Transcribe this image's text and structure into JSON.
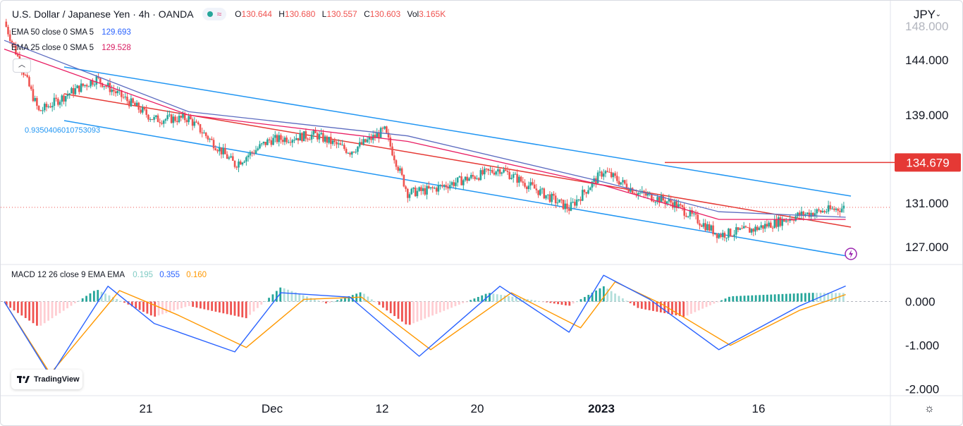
{
  "header": {
    "symbol": "U.S. Dollar / Japanese Yen · 4h · OANDA",
    "ohlc": [
      {
        "key": "O",
        "value": "130.644"
      },
      {
        "key": "H",
        "value": "130.680"
      },
      {
        "key": "L",
        "value": "130.557"
      },
      {
        "key": "C",
        "value": "130.603"
      },
      {
        "key": "Vol",
        "value": "3.165K"
      }
    ],
    "currency": "JPY"
  },
  "indicators": {
    "ema50": {
      "name": "EMA 50 close 0 SMA 5",
      "value": "129.693",
      "color": "#2962ff"
    },
    "ema25": {
      "name": "EMA 25 close 0 SMA 5",
      "value": "129.528",
      "color": "#d81b60"
    },
    "macd": {
      "name": "MACD 12 26 close 9 EMA EMA",
      "hist": "0.195",
      "macd": "0.355",
      "signal": "0.160",
      "colors": {
        "hist": "#26a69a",
        "macd": "#2962ff",
        "signal": "#ff9800"
      }
    }
  },
  "fib_label": "0.9350406010753093",
  "price_label": "134.679",
  "branding": "TradingView",
  "icons": [
    "collapse-chevron-up-icon",
    "lightning-icon",
    "settings-gear-icon",
    "tradingview-logo-icon"
  ],
  "chart_data": [
    {
      "type": "candlestick",
      "title": "U.S. Dollar / Japanese Yen · 4h · OANDA",
      "x_ticks": [
        "21",
        "Dec",
        "12",
        "20",
        "2023",
        "16"
      ],
      "y_ticks": [
        "144.000",
        "139.000",
        "131.000",
        "127.000"
      ],
      "ylim": [
        125.4,
        147.8
      ],
      "channel_lines": [
        "upper",
        "mid",
        "lower"
      ],
      "horizontal_level": 134.679,
      "series": [
        {
          "name": "Close",
          "x": [
            "Nov 15",
            "Nov 18",
            "Nov 21",
            "Nov 23",
            "Nov 28",
            "Dec 1",
            "Dec 5",
            "Dec 8",
            "Dec 12",
            "Dec 15",
            "Dec 18",
            "Dec 20",
            "Dec 22",
            "Dec 28",
            "Jan 3",
            "Jan 6",
            "Jan 9",
            "Jan 12",
            "Jan 16",
            "Jan 19",
            "Jan 23",
            "Jan 27"
          ],
          "values": [
            147.5,
            139.3,
            141.2,
            142.3,
            138.6,
            138.7,
            134.5,
            136.7,
            137.2,
            135.7,
            137.6,
            131.9,
            132.2,
            134.1,
            130.5,
            133.9,
            131.9,
            131.0,
            128.1,
            128.6,
            129.9,
            130.6
          ]
        },
        {
          "name": "EMA 50 close 0 SMA 5",
          "x": [
            "Nov 15",
            "Dec 1",
            "Dec 20",
            "Jan 6",
            "Jan 16",
            "Jan 27"
          ],
          "values": [
            145.8,
            139.3,
            137.1,
            132.9,
            130.2,
            129.7
          ]
        },
        {
          "name": "EMA 25 close 0 SMA 5",
          "x": [
            "Nov 15",
            "Dec 1",
            "Dec 20",
            "Jan 6",
            "Jan 16",
            "Jan 27"
          ],
          "values": [
            145.0,
            139.0,
            136.6,
            132.6,
            129.5,
            129.5
          ]
        }
      ]
    },
    {
      "type": "bar",
      "title": "MACD 12 26 close 9 EMA EMA",
      "y_ticks": [
        "0.000",
        "-1.000",
        "-2.000"
      ],
      "ylim": [
        -2.15,
        0.75
      ],
      "series": [
        {
          "name": "Histogram",
          "x": [
            "Nov 15",
            "Nov 18",
            "Nov 23",
            "Nov 28",
            "Dec 1",
            "Dec 6",
            "Dec 9",
            "Dec 13",
            "Dec 16",
            "Dec 20",
            "Dec 27",
            "Jan 3",
            "Jan 6",
            "Jan 9",
            "Jan 13",
            "Jan 17",
            "Jan 24",
            "Jan 27"
          ],
          "values": [
            -0.05,
            -0.58,
            0.28,
            -0.35,
            -0.1,
            -0.38,
            0.33,
            -0.05,
            0.22,
            -0.55,
            0.2,
            -0.1,
            0.35,
            -0.15,
            -0.35,
            0.12,
            0.2,
            0.195
          ]
        },
        {
          "name": "MACD",
          "x": [
            "Nov 15",
            "Nov 19",
            "Nov 24",
            "Nov 28",
            "Dec 5",
            "Dec 9",
            "Dec 15",
            "Dec 21",
            "Dec 28",
            "Jan 3",
            "Jan 6",
            "Jan 10",
            "Jan 16",
            "Jan 23",
            "Jan 27"
          ],
          "values": [
            0.0,
            -1.7,
            0.35,
            -0.5,
            -1.15,
            0.2,
            0.1,
            -1.25,
            0.35,
            -0.7,
            0.6,
            0.05,
            -1.1,
            -0.1,
            0.355
          ]
        },
        {
          "name": "Signal",
          "x": [
            "Nov 15",
            "Nov 19",
            "Nov 25",
            "Nov 30",
            "Dec 6",
            "Dec 11",
            "Dec 16",
            "Dec 22",
            "Dec 29",
            "Jan 4",
            "Jan 7",
            "Jan 11",
            "Jan 17",
            "Jan 23",
            "Jan 27"
          ],
          "values": [
            0.0,
            -1.65,
            0.25,
            -0.3,
            -1.05,
            0.05,
            0.1,
            -1.1,
            0.2,
            -0.6,
            0.45,
            -0.05,
            -1.0,
            -0.2,
            0.16
          ]
        }
      ]
    }
  ]
}
